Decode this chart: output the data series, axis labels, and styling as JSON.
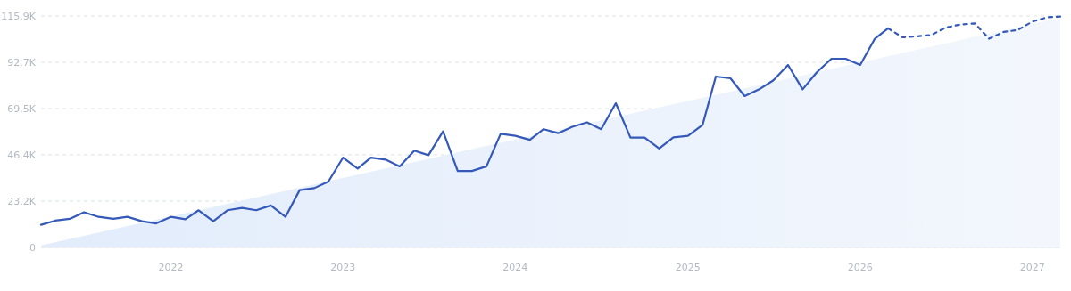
{
  "chart_data": {
    "type": "line",
    "xlim": [
      "2021-04",
      "2027-03"
    ],
    "xticks": [
      "2022",
      "2023",
      "2024",
      "2025",
      "2026",
      "2027"
    ],
    "ylim": [
      0,
      115900
    ],
    "yticks": [
      0,
      {
        "value": 23200,
        "label": "23.2K"
      },
      {
        "value": 46400,
        "label": "46.4K"
      },
      {
        "value": 69500,
        "label": "69.5K"
      },
      {
        "value": 92700,
        "label": "92.7K"
      },
      {
        "value": 115900,
        "label": "115.9K"
      }
    ],
    "grid": "y",
    "marker": "none",
    "series": [
      {
        "type": "area",
        "color": "#e2ecfb",
        "x": [
          "2021-04",
          "2027-03"
        ],
        "values": [
          1000,
          115000
        ]
      },
      {
        "color": "#3459b8",
        "line_style": "solid",
        "x": [
          "2021-04",
          "2021-05",
          "2021-06",
          "2021-07",
          "2021-08",
          "2021-09",
          "2021-10",
          "2021-11",
          "2021-12",
          "2022-01",
          "2022-02",
          "2022-03",
          "2022-04",
          "2022-05",
          "2022-06",
          "2022-07",
          "2022-08",
          "2022-09",
          "2022-10",
          "2022-11",
          "2022-12",
          "2023-01",
          "2023-02",
          "2023-03",
          "2023-04",
          "2023-05",
          "2023-06",
          "2023-07",
          "2023-08",
          "2023-09",
          "2023-10",
          "2023-11",
          "2023-12",
          "2024-01",
          "2024-02",
          "2024-03",
          "2024-04",
          "2024-05",
          "2024-06",
          "2024-07",
          "2024-08",
          "2024-09",
          "2024-10",
          "2024-11",
          "2024-12",
          "2025-01",
          "2025-02",
          "2025-03",
          "2025-04",
          "2025-05",
          "2025-06",
          "2025-07",
          "2025-08",
          "2025-09",
          "2025-10",
          "2025-11",
          "2025-12",
          "2026-01",
          "2026-02",
          "2026-03"
        ],
        "values": [
          11300,
          13400,
          14300,
          17600,
          15300,
          14300,
          15300,
          13100,
          12000,
          15300,
          14100,
          18600,
          13100,
          18600,
          19800,
          18600,
          21000,
          15300,
          28700,
          29700,
          33000,
          45000,
          39500,
          45000,
          44000,
          40600,
          48500,
          46200,
          58100,
          38300,
          38300,
          40600,
          56900,
          55900,
          53900,
          59200,
          57200,
          60400,
          62600,
          59200,
          72200,
          55000,
          55000,
          49500,
          55100,
          55900,
          61400,
          85600,
          84700,
          75800,
          79200,
          83700,
          91400,
          79200,
          87700,
          94500,
          94500,
          91400,
          104500,
          109700
        ]
      },
      {
        "color": "#3459b8",
        "line_style": "dashed",
        "x": [
          "2026-03",
          "2026-04",
          "2026-05",
          "2026-06",
          "2026-07",
          "2026-08",
          "2026-09",
          "2026-10",
          "2026-11",
          "2026-12",
          "2027-01",
          "2027-02",
          "2027-03"
        ],
        "values": [
          109700,
          105200,
          105700,
          106400,
          110100,
          111600,
          112200,
          104500,
          107900,
          108900,
          113100,
          115200,
          115600
        ]
      }
    ]
  }
}
